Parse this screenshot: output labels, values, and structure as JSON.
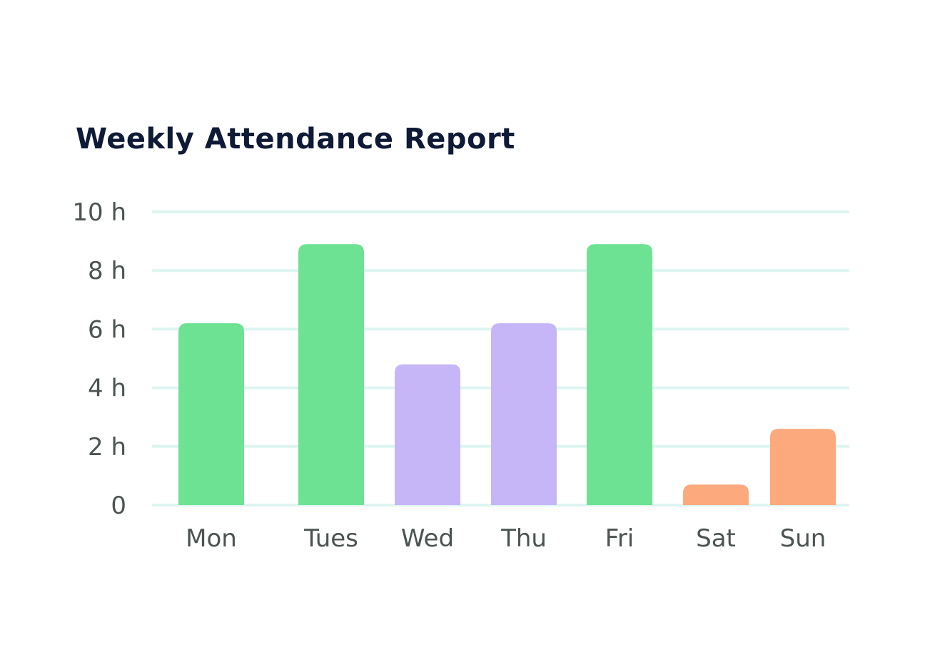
{
  "chart_data": {
    "type": "bar",
    "title": "Weekly Attendance Report",
    "categories": [
      "Mon",
      "Tues",
      "Wed",
      "Thu",
      "Fri",
      "Sat",
      "Sun"
    ],
    "values": [
      6.2,
      8.9,
      4.8,
      6.2,
      8.9,
      0.7,
      2.6
    ],
    "bar_colors": [
      "#6ce292",
      "#6ce292",
      "#c6b6f8",
      "#c6b6f8",
      "#6ce292",
      "#fca97e",
      "#fca97e"
    ],
    "ylim": [
      0,
      10
    ],
    "yticks": [
      0,
      2,
      4,
      6,
      8,
      10
    ],
    "ytick_labels": [
      "0",
      "2 h",
      "4 h",
      "6 h",
      "8 h",
      "10 h"
    ],
    "grid": true,
    "grid_color": "#ddf5f0",
    "xlabel": "",
    "ylabel": ""
  }
}
